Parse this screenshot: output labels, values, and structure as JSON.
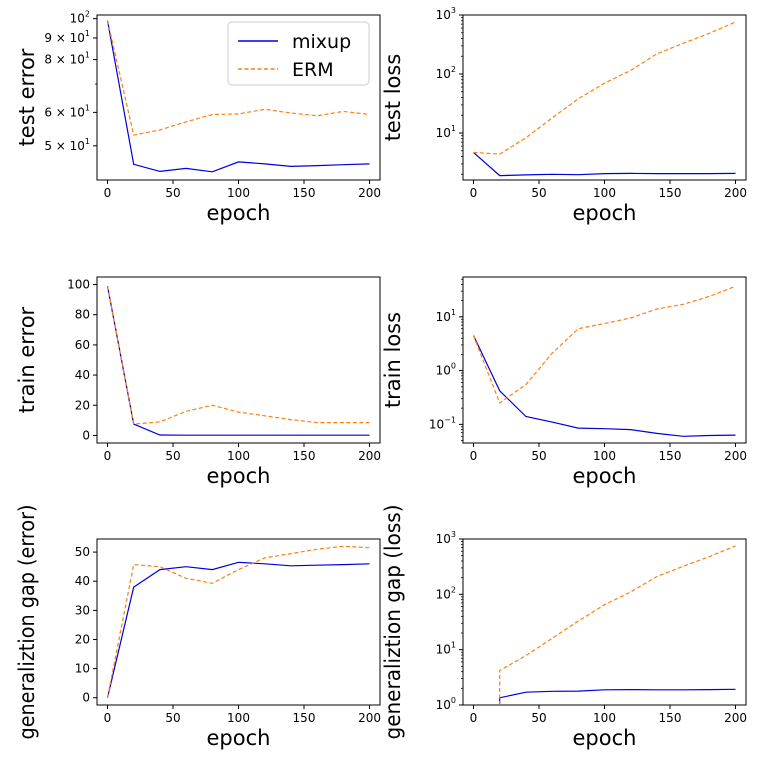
{
  "colors": {
    "mixup": "#0000dd",
    "erm": "#ff7f0e",
    "axis": "#000000"
  },
  "legend": {
    "position": "upper-right of first panel",
    "entries": [
      "mixup",
      "ERM"
    ]
  },
  "chart_data": [
    {
      "type": "line",
      "ylabel": "test error",
      "xlabel": "epoch",
      "scale": "log",
      "xlim": [
        -8,
        208
      ],
      "ylim": [
        41.5,
        102
      ],
      "xticks": [
        "0",
        "50",
        "100",
        "150",
        "200"
      ],
      "yticks": [
        {
          "value": 50,
          "base": "5 × 10",
          "exp": "1"
        },
        {
          "value": 60,
          "base": "6 × 10",
          "exp": "1"
        },
        {
          "value": 80,
          "base": "8 × 10",
          "exp": "1"
        },
        {
          "value": 90,
          "base": "9 × 10",
          "exp": "1"
        },
        {
          "value": 100,
          "base": "10",
          "exp": "2"
        }
      ],
      "minor_ticks": [
        70
      ],
      "series": [
        {
          "name": "mixup",
          "x": [
            0,
            20,
            40,
            60,
            80,
            100,
            120,
            140,
            160,
            180,
            200
          ],
          "values": [
            99,
            45.2,
            43.5,
            44.2,
            43.4,
            45.8,
            45.3,
            44.7,
            44.9,
            45.1,
            45.3
          ]
        },
        {
          "name": "ERM",
          "x": [
            0,
            20,
            40,
            60,
            80,
            100,
            120,
            140,
            160,
            180,
            200
          ],
          "values": [
            99,
            53,
            54.5,
            57,
            59.3,
            59.5,
            61,
            59.8,
            58.9,
            60.3,
            59.3
          ]
        }
      ]
    },
    {
      "type": "line",
      "ylabel": "test loss",
      "xlabel": "epoch",
      "scale": "log",
      "xlim": [
        -8,
        208
      ],
      "ylim": [
        1.6,
        1000
      ],
      "xticks": [
        "0",
        "50",
        "100",
        "150",
        "200"
      ],
      "yticks": [
        {
          "value": 10,
          "base": "10",
          "exp": "1"
        },
        {
          "value": 100,
          "base": "10",
          "exp": "2"
        },
        {
          "value": 1000,
          "base": "10",
          "exp": "3"
        }
      ],
      "series": [
        {
          "name": "mixup",
          "x": [
            0,
            20,
            40,
            60,
            80,
            100,
            120,
            140,
            160,
            180,
            200
          ],
          "values": [
            4.7,
            1.9,
            1.95,
            2.0,
            1.97,
            2.05,
            2.07,
            2.05,
            2.05,
            2.05,
            2.07
          ]
        },
        {
          "name": "ERM",
          "x": [
            0,
            20,
            40,
            60,
            80,
            100,
            120,
            140,
            160,
            180,
            200
          ],
          "values": [
            4.7,
            4.4,
            8.3,
            18,
            38,
            70,
            115,
            220,
            330,
            490,
            760
          ]
        }
      ]
    },
    {
      "type": "line",
      "ylabel": "train error",
      "xlabel": "epoch",
      "scale": "linear",
      "xlim": [
        -8,
        208
      ],
      "ylim": [
        -5,
        105
      ],
      "xticks": [
        "0",
        "50",
        "100",
        "150",
        "200"
      ],
      "yticks": [
        {
          "value": 0,
          "label": "0"
        },
        {
          "value": 20,
          "label": "20"
        },
        {
          "value": 40,
          "label": "40"
        },
        {
          "value": 60,
          "label": "60"
        },
        {
          "value": 80,
          "label": "80"
        },
        {
          "value": 100,
          "label": "100"
        }
      ],
      "series": [
        {
          "name": "mixup",
          "x": [
            0,
            20,
            40,
            60,
            80,
            100,
            120,
            140,
            160,
            180,
            200
          ],
          "values": [
            99,
            7.5,
            0.3,
            0.2,
            0.2,
            0.2,
            0.2,
            0.2,
            0.2,
            0.2,
            0.2
          ]
        },
        {
          "name": "ERM",
          "x": [
            0,
            20,
            40,
            60,
            80,
            100,
            120,
            140,
            160,
            180,
            200
          ],
          "values": [
            99,
            7.5,
            9,
            16,
            20,
            15.5,
            13,
            10.5,
            8.5,
            8.5,
            8.5
          ]
        }
      ]
    },
    {
      "type": "line",
      "ylabel": "train loss",
      "xlabel": "epoch",
      "scale": "log",
      "xlim": [
        -8,
        208
      ],
      "ylim": [
        0.045,
        55
      ],
      "xticks": [
        "0",
        "50",
        "100",
        "150",
        "200"
      ],
      "yticks": [
        {
          "value": 0.1,
          "base": "10",
          "exp": "−1"
        },
        {
          "value": 1,
          "base": "10",
          "exp": "0"
        },
        {
          "value": 10,
          "base": "10",
          "exp": "1"
        }
      ],
      "series": [
        {
          "name": "mixup",
          "x": [
            0,
            20,
            40,
            60,
            80,
            100,
            120,
            140,
            160,
            180,
            200
          ],
          "values": [
            4.5,
            0.42,
            0.14,
            0.11,
            0.085,
            0.083,
            0.08,
            0.068,
            0.06,
            0.062,
            0.063
          ]
        },
        {
          "name": "ERM",
          "x": [
            0,
            20,
            40,
            60,
            80,
            100,
            120,
            140,
            160,
            180,
            200
          ],
          "values": [
            4.5,
            0.25,
            0.55,
            2.1,
            6,
            7.5,
            9.5,
            14,
            17,
            24,
            37
          ]
        }
      ]
    },
    {
      "type": "line",
      "ylabel": "generaliztion gap (error)",
      "xlabel": "epoch",
      "scale": "linear",
      "xlim": [
        -8,
        208
      ],
      "ylim": [
        -2.5,
        54.5
      ],
      "xticks": [
        "0",
        "50",
        "100",
        "150",
        "200"
      ],
      "yticks": [
        {
          "value": 0,
          "label": "0"
        },
        {
          "value": 10,
          "label": "10"
        },
        {
          "value": 20,
          "label": "20"
        },
        {
          "value": 30,
          "label": "30"
        },
        {
          "value": 40,
          "label": "40"
        },
        {
          "value": 50,
          "label": "50"
        }
      ],
      "series": [
        {
          "name": "mixup",
          "x": [
            0,
            20,
            40,
            60,
            80,
            100,
            120,
            140,
            160,
            180,
            200
          ],
          "values": [
            0,
            38,
            44,
            45,
            44,
            46.5,
            46,
            45.3,
            45.5,
            45.7,
            46
          ]
        },
        {
          "name": "ERM",
          "x": [
            0,
            20,
            40,
            60,
            80,
            100,
            120,
            140,
            160,
            180,
            200
          ],
          "values": [
            0,
            45.7,
            45,
            41,
            39.3,
            44,
            48,
            49.5,
            51,
            52,
            51.5
          ]
        }
      ]
    },
    {
      "type": "line",
      "ylabel": "generaliztion gap (loss)",
      "xlabel": "epoch",
      "scale": "log",
      "xlim": [
        -8,
        208
      ],
      "ylim": [
        1,
        1000
      ],
      "xticks": [
        "0",
        "50",
        "100",
        "150",
        "200"
      ],
      "yticks": [
        {
          "value": 1,
          "base": "10",
          "exp": "0"
        },
        {
          "value": 10,
          "base": "10",
          "exp": "1"
        },
        {
          "value": 100,
          "base": "10",
          "exp": "2"
        },
        {
          "value": 1000,
          "base": "10",
          "exp": "3"
        }
      ],
      "series": [
        {
          "name": "mixup",
          "x": [
            20,
            20,
            40,
            60,
            80,
            100,
            120,
            140,
            160,
            180,
            200
          ],
          "values": [
            1,
            1.35,
            1.7,
            1.77,
            1.78,
            1.88,
            1.9,
            1.88,
            1.88,
            1.9,
            1.92
          ]
        },
        {
          "name": "ERM",
          "x": [
            20,
            20,
            40,
            60,
            80,
            100,
            120,
            140,
            160,
            180,
            200
          ],
          "values": [
            1,
            4.2,
            7.8,
            16,
            33,
            65,
            110,
            210,
            320,
            480,
            750
          ]
        }
      ]
    }
  ]
}
